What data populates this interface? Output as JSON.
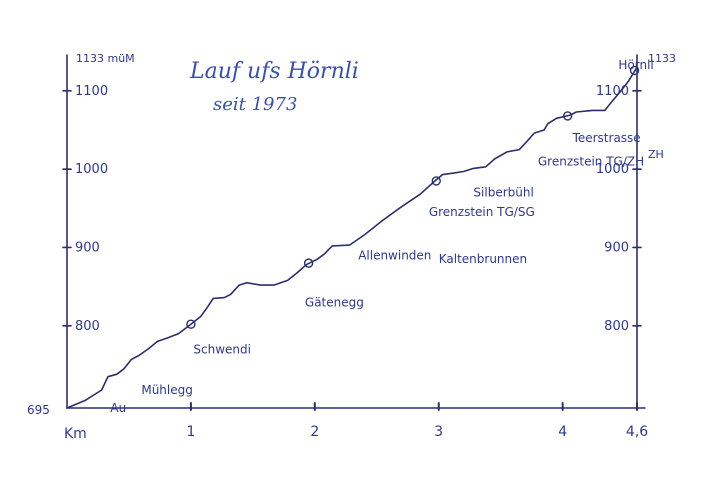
{
  "chart_data": {
    "type": "line",
    "title": "Lauf ufs Hörnli",
    "subtitle": "seit 1973",
    "xlabel": "Km",
    "y_top_label_left": "1133 müM",
    "y_top_label_right": "1133",
    "y_bottom_label": "695",
    "xlim": [
      0,
      4.6
    ],
    "ylim": [
      695,
      1133
    ],
    "x_ticks": [
      {
        "value": 1,
        "label": "1"
      },
      {
        "value": 2,
        "label": "2"
      },
      {
        "value": 3,
        "label": "3"
      },
      {
        "value": 4,
        "label": "4"
      },
      {
        "value": 4.6,
        "label": "4,6"
      }
    ],
    "y_ticks": [
      {
        "value": 800,
        "label": "800"
      },
      {
        "value": 900,
        "label": "900"
      },
      {
        "value": 1000,
        "label": "1000"
      },
      {
        "value": 1100,
        "label": "1100"
      }
    ],
    "y_ticks_right": [
      {
        "value": 800,
        "label": "800"
      },
      {
        "value": 900,
        "label": "900"
      },
      {
        "value": 1000,
        "label": "1000"
      },
      {
        "value": 1100,
        "label": "1100"
      }
    ],
    "zh_label": "ZH",
    "profile": [
      [
        0,
        695
      ],
      [
        0.15,
        705
      ],
      [
        0.28,
        718
      ],
      [
        0.33,
        735
      ],
      [
        0.4,
        738
      ],
      [
        0.46,
        745
      ],
      [
        0.52,
        757
      ],
      [
        0.58,
        762
      ],
      [
        0.66,
        771
      ],
      [
        0.73,
        780
      ],
      [
        0.82,
        785
      ],
      [
        0.9,
        790
      ],
      [
        1.0,
        802
      ],
      [
        1.08,
        812
      ],
      [
        1.13,
        823
      ],
      [
        1.18,
        835
      ],
      [
        1.27,
        836
      ],
      [
        1.32,
        840
      ],
      [
        1.39,
        852
      ],
      [
        1.45,
        855
      ],
      [
        1.56,
        852
      ],
      [
        1.67,
        852
      ],
      [
        1.78,
        858
      ],
      [
        1.86,
        868
      ],
      [
        1.93,
        878
      ],
      [
        2.02,
        885
      ],
      [
        2.08,
        892
      ],
      [
        2.14,
        902
      ],
      [
        2.28,
        903
      ],
      [
        2.4,
        916
      ],
      [
        2.55,
        935
      ],
      [
        2.7,
        952
      ],
      [
        2.85,
        968
      ],
      [
        2.97,
        985
      ],
      [
        3.03,
        993
      ],
      [
        3.12,
        995
      ],
      [
        3.2,
        997
      ],
      [
        3.28,
        1001
      ],
      [
        3.38,
        1003
      ],
      [
        3.45,
        1013
      ],
      [
        3.55,
        1022
      ],
      [
        3.65,
        1025
      ],
      [
        3.71,
        1035
      ],
      [
        3.77,
        1046
      ],
      [
        3.85,
        1050
      ],
      [
        3.88,
        1058
      ],
      [
        3.95,
        1065
      ],
      [
        4.06,
        1069
      ],
      [
        4.11,
        1073
      ],
      [
        4.24,
        1075
      ],
      [
        4.34,
        1075
      ],
      [
        4.39,
        1085
      ],
      [
        4.46,
        1098
      ],
      [
        4.53,
        1112
      ],
      [
        4.6,
        1130
      ]
    ],
    "annotations": [
      {
        "label": "Au",
        "x": 0.35,
        "y": 695,
        "marker": false
      },
      {
        "label": "Mühlegg",
        "x": 0.6,
        "y": 718,
        "marker": false
      },
      {
        "label": "Schwendi",
        "x": 1.02,
        "y": 770,
        "marker": true,
        "mx": 1.0,
        "my": 802
      },
      {
        "label": "Gätenegg",
        "x": 1.92,
        "y": 830,
        "marker": true,
        "mx": 1.95,
        "my": 880
      },
      {
        "label": "Allenwinden",
        "x": 2.35,
        "y": 890,
        "marker": false
      },
      {
        "label": "Kaltenbrunnen",
        "x": 3.0,
        "y": 885,
        "marker": false
      },
      {
        "label": "Grenzstein TG/SG",
        "x": 2.92,
        "y": 945,
        "marker": true,
        "mx": 2.98,
        "my": 985
      },
      {
        "label": "Silberbühl",
        "x": 3.28,
        "y": 970,
        "marker": false
      },
      {
        "label": "Grenzstein TG/ZH",
        "x": 3.8,
        "y": 1010,
        "marker": false
      },
      {
        "label": "Teerstrasse",
        "x": 4.08,
        "y": 1040,
        "marker": true,
        "mx": 4.04,
        "my": 1068
      },
      {
        "label": "Hörnli",
        "x": 4.45,
        "y": 1133,
        "marker": true,
        "mx": 4.58,
        "my": 1126
      }
    ],
    "grid": false,
    "legend": "none"
  }
}
